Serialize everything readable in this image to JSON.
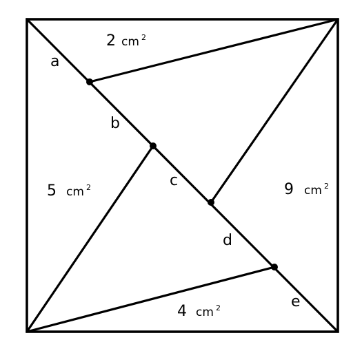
{
  "diagram": {
    "segment_labels": {
      "a": "a",
      "b": "b",
      "c": "c",
      "d": "d",
      "e": "e"
    },
    "areas": {
      "top": {
        "value": "2",
        "unit": "cm",
        "exponent": "2"
      },
      "left": {
        "value": "5",
        "unit": "cm",
        "exponent": "2"
      },
      "right": {
        "value": "9",
        "unit": "cm",
        "exponent": "2"
      },
      "bottom": {
        "value": "4",
        "unit": "cm",
        "exponent": "2"
      }
    }
  }
}
